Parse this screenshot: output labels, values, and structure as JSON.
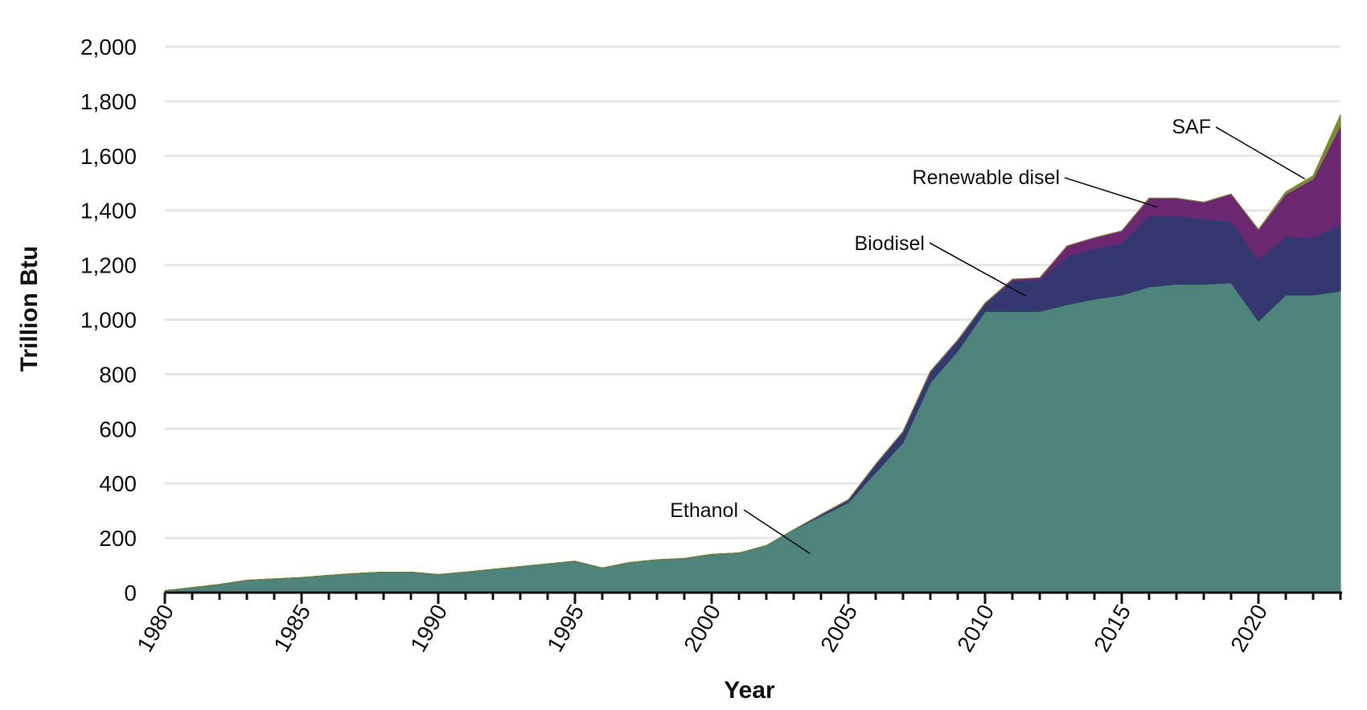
{
  "chart_data": {
    "type": "area",
    "stacked": true,
    "title": "",
    "xlabel": "Year",
    "ylabel": "Trillion Btu",
    "xlim": [
      1980,
      2023
    ],
    "ylim": [
      0,
      2000
    ],
    "grid": true,
    "x_ticks": [
      "1980",
      "1985",
      "1990",
      "1995",
      "2000",
      "2005",
      "2010",
      "2015",
      "2020"
    ],
    "x_tick_values": [
      1980,
      1985,
      1990,
      1995,
      2000,
      2005,
      2010,
      2015,
      2020
    ],
    "y_ticks": [
      "0",
      "200",
      "400",
      "600",
      "800",
      "1,000",
      "1,200",
      "1,400",
      "1,600",
      "1,800",
      "2,000"
    ],
    "y_tick_values": [
      0,
      200,
      400,
      600,
      800,
      1000,
      1200,
      1400,
      1600,
      1800,
      2000
    ],
    "x": [
      1980,
      1981,
      1982,
      1983,
      1984,
      1985,
      1986,
      1987,
      1988,
      1989,
      1990,
      1991,
      1992,
      1993,
      1994,
      1995,
      1996,
      1997,
      1998,
      1999,
      2000,
      2001,
      2002,
      2003,
      2004,
      2005,
      2006,
      2007,
      2008,
      2009,
      2010,
      2011,
      2012,
      2013,
      2014,
      2015,
      2016,
      2017,
      2018,
      2019,
      2020,
      2021,
      2022,
      2023
    ],
    "series": [
      {
        "name": "Ethanol",
        "color": "#4e847c",
        "values": [
          7,
          18,
          30,
          45,
          50,
          55,
          63,
          70,
          75,
          75,
          66,
          75,
          85,
          95,
          105,
          115,
          90,
          110,
          120,
          125,
          140,
          145,
          172,
          230,
          280,
          330,
          440,
          550,
          770,
          885,
          1030,
          1030,
          1030,
          1055,
          1075,
          1090,
          1120,
          1130,
          1130,
          1135,
          995,
          1090,
          1090,
          1105
        ]
      },
      {
        "name": "Biodiesel",
        "color": "#353771",
        "values": [
          0,
          0,
          0,
          0,
          0,
          0,
          0,
          0,
          0,
          0,
          0,
          0,
          0,
          0,
          0,
          0,
          0,
          0,
          0,
          0,
          0,
          0,
          0,
          0,
          6,
          10,
          30,
          40,
          40,
          40,
          30,
          110,
          115,
          175,
          185,
          190,
          260,
          250,
          240,
          225,
          225,
          215,
          210,
          245
        ]
      },
      {
        "name": "Renewable disel",
        "color": "#6b2870",
        "values": [
          0,
          0,
          0,
          0,
          0,
          0,
          0,
          0,
          0,
          0,
          0,
          0,
          0,
          0,
          0,
          0,
          0,
          0,
          0,
          0,
          0,
          0,
          0,
          0,
          0,
          0,
          0,
          0,
          0,
          0,
          0,
          8,
          8,
          40,
          40,
          45,
          65,
          65,
          60,
          100,
          110,
          155,
          215,
          360
        ]
      },
      {
        "name": "SAF",
        "color": "#7a8a2e",
        "values": [
          0,
          0,
          0,
          0,
          0,
          0,
          0,
          0,
          0,
          0,
          0,
          0,
          0,
          0,
          0,
          0,
          0,
          0,
          0,
          0,
          0,
          0,
          0,
          0,
          0,
          0,
          0,
          0,
          0,
          0,
          0,
          0,
          0,
          0,
          0,
          0,
          0,
          0,
          0,
          0,
          0,
          8,
          12,
          40
        ]
      }
    ],
    "annotations": [
      {
        "series": "SAF",
        "text": "SAF",
        "point_year": 2021.7
      },
      {
        "series": "Renewable disel",
        "text": "Renewable disel",
        "point_year": 2016.3
      },
      {
        "series": "Biodiesel",
        "text": "Biodisel",
        "point_year": 2011.5
      },
      {
        "series": "Ethanol",
        "text": "Ethanol",
        "point_year": 2003.6
      }
    ]
  }
}
